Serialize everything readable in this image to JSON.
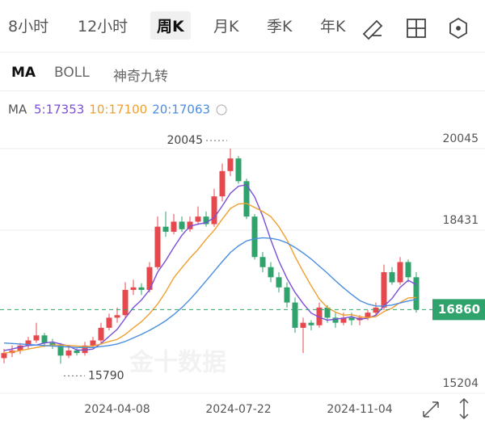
{
  "tabs": [
    "8小时",
    "12小时",
    "周K",
    "月K",
    "季K",
    "年K"
  ],
  "indicators": [
    "MA",
    "BOLL",
    "神奇九转"
  ],
  "watermark": "金十数据",
  "chart_data": {
    "type": "candlestick",
    "legend_title": "MA",
    "categories": [
      null,
      null,
      null,
      null,
      null,
      null,
      null,
      null,
      null,
      null,
      null,
      null,
      null,
      null,
      "2024-04-08",
      null,
      null,
      null,
      null,
      null,
      null,
      null,
      null,
      null,
      null,
      null,
      null,
      null,
      null,
      "2024-07-22",
      null,
      null,
      null,
      null,
      null,
      null,
      null,
      null,
      null,
      null,
      null,
      null,
      null,
      null,
      "2024-11-04",
      null,
      null,
      null,
      null,
      null,
      null,
      null
    ],
    "open": [
      15900,
      16000,
      16050,
      16150,
      16250,
      16350,
      16200,
      16150,
      15950,
      16050,
      16000,
      16150,
      16250,
      16500,
      16700,
      16750,
      17250,
      17300,
      17250,
      17700,
      18500,
      18400,
      18600,
      18450,
      18600,
      18700,
      18550,
      19100,
      19600,
      19850,
      19400,
      18700,
      17900,
      17700,
      17500,
      17300,
      17000,
      16500,
      16600,
      16550,
      16900,
      16700,
      16600,
      16700,
      16650,
      16700,
      16800,
      16900,
      17600,
      17400,
      17800,
      17500
    ],
    "high": [
      16080,
      16150,
      16200,
      16320,
      16600,
      16400,
      16280,
      16200,
      16120,
      16100,
      16220,
      16320,
      16600,
      16780,
      16900,
      17400,
      17450,
      17380,
      17800,
      18700,
      18800,
      18750,
      18700,
      18700,
      18900,
      18800,
      19250,
      19750,
      20045,
      19900,
      19450,
      18750,
      18000,
      17800,
      17600,
      17400,
      17100,
      16700,
      16650,
      17000,
      16950,
      16800,
      16800,
      16800,
      16750,
      16850,
      17000,
      17750,
      17700,
      17900,
      17850,
      17600
    ],
    "low": [
      15800,
      15920,
      15980,
      16080,
      16200,
      16120,
      16080,
      15790,
      15900,
      15950,
      15950,
      16100,
      16200,
      16450,
      16600,
      16700,
      17150,
      17150,
      17200,
      17650,
      18300,
      18350,
      18400,
      18400,
      18550,
      18500,
      18500,
      19000,
      19500,
      19350,
      18650,
      17850,
      17600,
      17400,
      17200,
      16900,
      16400,
      16000,
      16450,
      16500,
      16600,
      16500,
      16550,
      16550,
      16550,
      16650,
      16750,
      16850,
      17350,
      17350,
      17400,
      16800
    ],
    "close": [
      16000,
      16050,
      16150,
      16250,
      16350,
      16200,
      16150,
      15950,
      16050,
      16000,
      16150,
      16250,
      16500,
      16700,
      16750,
      17250,
      17300,
      17250,
      17700,
      18500,
      18400,
      18600,
      18450,
      18600,
      18700,
      18550,
      19100,
      19600,
      19850,
      19400,
      18700,
      17900,
      17700,
      17500,
      17300,
      17000,
      16500,
      16600,
      16550,
      16900,
      16700,
      16600,
      16700,
      16650,
      16700,
      16800,
      16900,
      17600,
      17400,
      17800,
      17500,
      16860
    ],
    "up_color": "#e5484d",
    "down_color": "#2fa36b",
    "series": [
      {
        "legend": "5:17353",
        "color": "#7a4fd6",
        "values": [
          16050,
          16080,
          16120,
          16150,
          16160,
          16200,
          16220,
          16180,
          16140,
          16060,
          16060,
          16080,
          16190,
          16330,
          16470,
          16690,
          16900,
          17050,
          17250,
          17600,
          17830,
          18090,
          18330,
          18510,
          18550,
          18580,
          18680,
          18910,
          19160,
          19300,
          19330,
          19090,
          18710,
          18240,
          17820,
          17480,
          17200,
          16980,
          16790,
          16710,
          16650,
          16670,
          16690,
          16720,
          16670,
          16690,
          16750,
          16930,
          17080,
          17300,
          17440,
          17353
        ]
      },
      {
        "legend": "10:17100",
        "color": "#f0a030",
        "values": [
          16000,
          16020,
          16050,
          16080,
          16110,
          16140,
          16160,
          16160,
          16150,
          16140,
          16130,
          16140,
          16180,
          16230,
          16270,
          16370,
          16500,
          16620,
          16780,
          16970,
          17210,
          17490,
          17690,
          17880,
          18050,
          18250,
          18430,
          18650,
          18860,
          18950,
          18960,
          18880,
          18800,
          18700,
          18500,
          18240,
          17910,
          17610,
          17330,
          17070,
          16900,
          16810,
          16750,
          16760,
          16720,
          16700,
          16720,
          16820,
          16890,
          17000,
          17090,
          17100
        ]
      },
      {
        "legend": "20:17063",
        "color": "#4a8ee0",
        "values": [
          16200,
          16190,
          16180,
          16170,
          16160,
          16150,
          16140,
          16130,
          16120,
          16110,
          16110,
          16110,
          16130,
          16150,
          16180,
          16230,
          16300,
          16370,
          16450,
          16540,
          16640,
          16760,
          16900,
          17060,
          17240,
          17430,
          17620,
          17810,
          17990,
          18120,
          18220,
          18260,
          18280,
          18270,
          18240,
          18180,
          18090,
          17980,
          17860,
          17720,
          17580,
          17430,
          17290,
          17160,
          17040,
          16970,
          16930,
          16930,
          16950,
          16990,
          17030,
          17063
        ]
      }
    ],
    "high_label": 20045,
    "low_label": 15790,
    "last_price": 16860,
    "ylim": [
      15204,
      20588
    ],
    "yticks": [
      15204,
      18431,
      20045
    ],
    "grid": true
  }
}
